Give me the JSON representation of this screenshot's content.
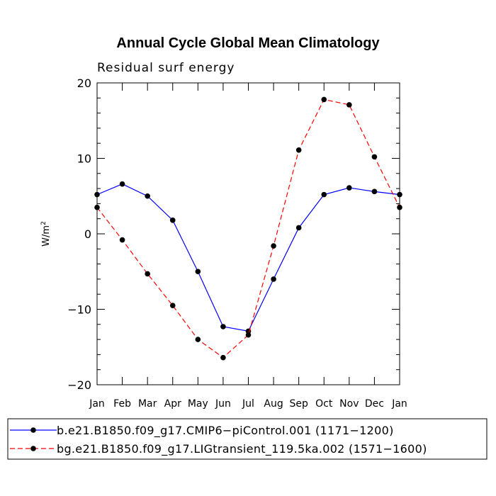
{
  "chart_data": {
    "type": "line",
    "title": "Annual Cycle Global Mean Climatology",
    "subtitle": "Residual surf energy",
    "ylabel": "W/m",
    "ylabel_superscript": "2",
    "xlabel": "",
    "categories": [
      "Jan",
      "Feb",
      "Mar",
      "Apr",
      "May",
      "Jun",
      "Jul",
      "Aug",
      "Sep",
      "Oct",
      "Nov",
      "Dec",
      "Jan"
    ],
    "ylim": [
      -20,
      20
    ],
    "yticks": [
      -20,
      -10,
      0,
      10,
      20
    ],
    "yticks_labels": [
      "−20",
      "−10",
      "0",
      "10",
      "20"
    ],
    "grid": false,
    "legend_position": "bottom",
    "series": [
      {
        "name": "b.e21.B1850.f09_g17.CMIP6−piControl.001 (1171−1200)",
        "color": "#0000ff",
        "dash": "solid",
        "values": [
          5.2,
          6.6,
          5.0,
          1.8,
          -5.0,
          -12.3,
          -12.9,
          -6.0,
          0.8,
          5.2,
          6.1,
          5.6,
          5.2
        ]
      },
      {
        "name": "bg.e21.B1850.f09_g17.LIGtransient_119.5ka.002 (1571−1600)",
        "color": "#ff0000",
        "dash": "dashed",
        "values": [
          3.5,
          -0.8,
          -5.3,
          -9.5,
          -14.0,
          -16.4,
          -13.4,
          -1.6,
          11.1,
          17.8,
          17.1,
          10.2,
          3.5
        ]
      }
    ]
  }
}
